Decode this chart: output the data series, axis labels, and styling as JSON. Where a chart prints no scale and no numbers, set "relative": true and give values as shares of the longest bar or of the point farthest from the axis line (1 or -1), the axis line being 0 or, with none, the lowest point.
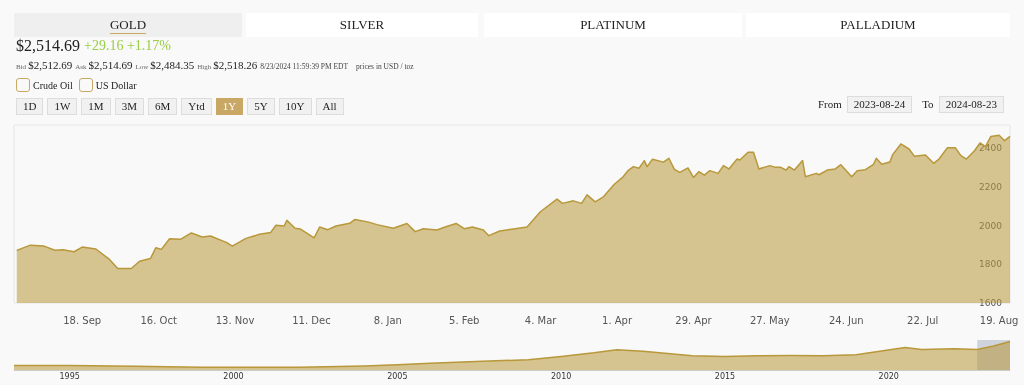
{
  "chart_data": [
    {
      "type": "area",
      "title": "GOLD",
      "annotations": [
        "SILVER",
        "PLATINUM",
        "PALLADIUM",
        "$2,514.69",
        "+29.16 +1.17%",
        "Bid",
        "$2,512.69",
        "Ask",
        "$2,514.69",
        "Low",
        "$2,484.35",
        "High",
        "$2,518.26",
        "8/23/2024 11:59:39 PM EDT",
        "prices in USD / toz",
        "Crude Oil",
        "US Dollar",
        "1D",
        "1W",
        "1M",
        "3M",
        "6M",
        "Ytd",
        "1Y",
        "5Y",
        "10Y",
        "All",
        "From",
        "2023-08-24",
        "To",
        "2024-08-23"
      ],
      "x": [
        "2023-08-25",
        "2023-08-30",
        "2023-09-04",
        "2023-09-08",
        "2023-09-11",
        "2023-09-15",
        "2023-09-18",
        "2023-09-23",
        "2023-09-28",
        "2023-10-01",
        "2023-10-06",
        "2023-10-09",
        "2023-10-13",
        "2023-10-15",
        "2023-10-17",
        "2023-10-20",
        "2023-10-24",
        "2023-10-28",
        "2023-11-01",
        "2023-11-04",
        "2023-11-10",
        "2023-11-12",
        "2023-11-17",
        "2023-11-22",
        "2023-11-26",
        "2023-11-28",
        "2023-12-01",
        "2023-12-02",
        "2023-12-05",
        "2023-12-07",
        "2023-12-12",
        "2023-12-14",
        "2023-12-17",
        "2023-12-20",
        "2023-12-25",
        "2023-12-27",
        "2024-01-01",
        "2024-01-04",
        "2024-01-10",
        "2024-01-15",
        "2024-01-18",
        "2024-01-21",
        "2024-01-26",
        "2024-01-29",
        "2024-02-02",
        "2024-02-05",
        "2024-02-08",
        "2024-02-12",
        "2024-02-14",
        "2024-02-18",
        "2024-02-23",
        "2024-02-28",
        "2024-03-04",
        "2024-03-10",
        "2024-03-12",
        "2024-03-16",
        "2024-03-19",
        "2024-03-21",
        "2024-03-24",
        "2024-03-27",
        "2024-03-31",
        "2024-04-03",
        "2024-04-05",
        "2024-04-07",
        "2024-04-09",
        "2024-04-11",
        "2024-04-12",
        "2024-04-14",
        "2024-04-18",
        "2024-04-20",
        "2024-04-22",
        "2024-04-24",
        "2024-04-27",
        "2024-04-29",
        "2024-05-01",
        "2024-05-03",
        "2024-05-05",
        "2024-05-08",
        "2024-05-10",
        "2024-05-12",
        "2024-05-15",
        "2024-05-16",
        "2024-05-19",
        "2024-05-21",
        "2024-05-23",
        "2024-05-27",
        "2024-05-29",
        "2024-05-31",
        "2024-06-02",
        "2024-06-03",
        "2024-06-05",
        "2024-06-08",
        "2024-06-09",
        "2024-06-13",
        "2024-06-14",
        "2024-06-17",
        "2024-06-20",
        "2024-06-22",
        "2024-06-24",
        "2024-06-26",
        "2024-06-28",
        "2024-07-01",
        "2024-07-04",
        "2024-07-05",
        "2024-07-07",
        "2024-07-10",
        "2024-07-11",
        "2024-07-14",
        "2024-07-17",
        "2024-07-19",
        "2024-07-23",
        "2024-07-26",
        "2024-07-28",
        "2024-07-31",
        "2024-08-03",
        "2024-08-05",
        "2024-08-07",
        "2024-08-10",
        "2024-08-12",
        "2024-08-14",
        "2024-08-16",
        "2024-08-19",
        "2024-08-21",
        "2024-08-23"
      ],
      "series": [
        {
          "color": "#b8983a",
          "values": [
            1872,
            1899,
            1894,
            1873,
            1875,
            1865,
            1889,
            1879,
            1825,
            1778,
            1778,
            1816,
            1830,
            1886,
            1877,
            1932,
            1929,
            1962,
            1941,
            1946,
            1912,
            1894,
            1934,
            1955,
            1964,
            2002,
            1998,
            2027,
            1986,
            1982,
            1937,
            1993,
            1979,
            1998,
            2012,
            2032,
            2018,
            2005,
            1986,
            2011,
            1969,
            1984,
            1977,
            1993,
            2011,
            1984,
            1993,
            1977,
            1948,
            1972,
            1982,
            1993,
            2073,
            2137,
            2115,
            2128,
            2115,
            2159,
            2123,
            2149,
            2214,
            2249,
            2284,
            2305,
            2296,
            2336,
            2305,
            2343,
            2328,
            2348,
            2291,
            2275,
            2298,
            2249,
            2279,
            2261,
            2284,
            2270,
            2310,
            2293,
            2344,
            2339,
            2379,
            2379,
            2293,
            2310,
            2301,
            2301,
            2287,
            2305,
            2287,
            2336,
            2253,
            2270,
            2263,
            2287,
            2293,
            2315,
            2284,
            2253,
            2284,
            2289,
            2317,
            2348,
            2317,
            2329,
            2367,
            2422,
            2396,
            2358,
            2365,
            2322,
            2344,
            2402,
            2402,
            2362,
            2344,
            2387,
            2427,
            2408,
            2461,
            2467,
            2439,
            2461
          ]
        }
      ],
      "xlim": [
        "2023-08-24",
        "2024-08-23"
      ],
      "xticks": [
        {
          "value": "2023-09-18",
          "label": "18. Sep"
        },
        {
          "value": "2023-10-16",
          "label": "16. Oct"
        },
        {
          "value": "2023-11-13",
          "label": "13. Nov"
        },
        {
          "value": "2023-12-11",
          "label": "11. Dec"
        },
        {
          "value": "2024-01-08",
          "label": "8. Jan"
        },
        {
          "value": "2024-02-05",
          "label": "5. Feb"
        },
        {
          "value": "2024-03-04",
          "label": "4. Mar"
        },
        {
          "value": "2024-04-01",
          "label": "1. Apr"
        },
        {
          "value": "2024-04-29",
          "label": "29. Apr"
        },
        {
          "value": "2024-05-27",
          "label": "27. May"
        },
        {
          "value": "2024-06-24",
          "label": "24. Jun"
        },
        {
          "value": "2024-07-22",
          "label": "22. Jul"
        },
        {
          "value": "2024-08-19",
          "label": "19. Aug"
        }
      ],
      "ylim": [
        1600,
        2520
      ],
      "yticks": [
        1600,
        1800,
        2000,
        2200,
        2400
      ],
      "grid": false,
      "marker": "none",
      "line_style": "solid"
    },
    {
      "type": "area",
      "relative": true,
      "tick_labels": "x",
      "x": [
        1993.3,
        1995,
        1997,
        1999,
        2000,
        2002,
        2004,
        2005,
        2006,
        2008,
        2009,
        2010,
        2011,
        2011.7,
        2012.5,
        2013,
        2014,
        2015,
        2016,
        2017,
        2018,
        2019,
        2020.5,
        2021,
        2022,
        2022.7,
        2023.2,
        2023.7
      ],
      "series": [
        {
          "color": "#b8983a",
          "values": [
            0.16,
            0.16,
            0.13,
            0.1,
            0.1,
            0.1,
            0.14,
            0.18,
            0.24,
            0.32,
            0.36,
            0.47,
            0.6,
            0.71,
            0.66,
            0.6,
            0.5,
            0.47,
            0.5,
            0.51,
            0.5,
            0.53,
            0.79,
            0.72,
            0.74,
            0.72,
            0.84,
            1
          ]
        }
      ],
      "xlim": [
        1993.3,
        2023.7
      ],
      "xticks": [
        1995,
        2000,
        2005,
        2010,
        2015,
        2020
      ],
      "bands": [
        {
          "axis": "x",
          "from": 2022.7,
          "to": 2023.7,
          "color": "#9aa4b8"
        }
      ],
      "grid": false,
      "marker": "none",
      "line_style": "solid"
    }
  ]
}
